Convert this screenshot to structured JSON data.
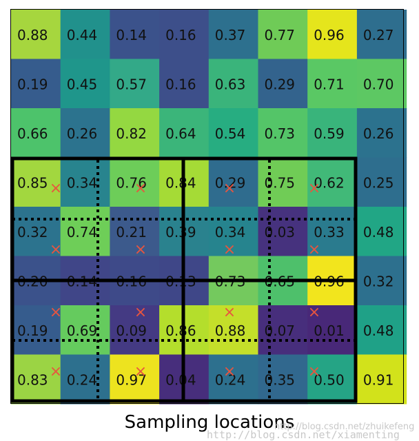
{
  "grid": {
    "values": [
      [
        "0.88",
        "0.44",
        "0.14",
        "0.16",
        "0.37",
        "0.77",
        "0.96",
        "0.27"
      ],
      [
        "0.19",
        "0.45",
        "0.57",
        "0.16",
        "0.63",
        "0.29",
        "0.71",
        "0.70"
      ],
      [
        "0.66",
        "0.26",
        "0.82",
        "0.64",
        "0.54",
        "0.73",
        "0.59",
        "0.26"
      ],
      [
        "0.85",
        "0.34",
        "0.76",
        "0.84",
        "0.29",
        "0.75",
        "0.62",
        "0.25"
      ],
      [
        "0.32",
        "0.74",
        "0.21",
        "0.39",
        "0.34",
        "0.03",
        "0.33",
        "0.48"
      ],
      [
        "0.20",
        "0.14",
        "0.16",
        "0.13",
        "0.73",
        "0.65",
        "0.96",
        "0.32"
      ],
      [
        "0.19",
        "0.69",
        "0.09",
        "0.86",
        "0.88",
        "0.07",
        "0.01",
        "0.48"
      ],
      [
        "0.83",
        "0.24",
        "0.97",
        "0.04",
        "0.24",
        "0.35",
        "0.50",
        "0.91"
      ]
    ],
    "colors": [
      [
        "#a6d63e",
        "#21918c",
        "#3b528b",
        "#3d4f8a",
        "#2d708e",
        "#6fcb57",
        "#e5e51c",
        "#2e6e8e"
      ],
      [
        "#365c8d",
        "#1f968b",
        "#33a988",
        "#3d4f8a",
        "#3ab47b",
        "#33638d",
        "#5ac864",
        "#5dc863"
      ],
      [
        "#4dc36b",
        "#2c738e",
        "#94d841",
        "#3bb57a",
        "#27ad81",
        "#54c568",
        "#39b47b",
        "#2c728e"
      ],
      [
        "#a2d73f",
        "#28848e",
        "#6dcd59",
        "#a5db36",
        "#2f6c8e",
        "#70cc56",
        "#41b978",
        "#2e6e8e"
      ],
      [
        "#2c738e",
        "#6ece58",
        "#3c5a8c",
        "#2a828e",
        "#26848e",
        "#46327e",
        "#2a7b8e",
        "#21a685"
      ],
      [
        "#3b528b",
        "#404688",
        "#3e4a89",
        "#3f4788",
        "#74c95e",
        "#4ec06b",
        "#f2e51d",
        "#2d708e"
      ],
      [
        "#365c8d",
        "#65cb5e",
        "#443a83",
        "#b4de2c",
        "#c4df2a",
        "#472e7c",
        "#482878",
        "#1fa187"
      ],
      [
        "#9bd444",
        "#2d708e",
        "#ede31f",
        "#472e7c",
        "#2d708e",
        "#31688e",
        "#25a485",
        "#d2e21b"
      ]
    ]
  },
  "sampling_markers": "×",
  "marker_color": "#e8553f",
  "caption": "Sampling locations",
  "watermark_blog": "http://blog.csdn.net/zhuikefeng",
  "watermark_url": "http://blog.csdn.net/xiamenting"
}
